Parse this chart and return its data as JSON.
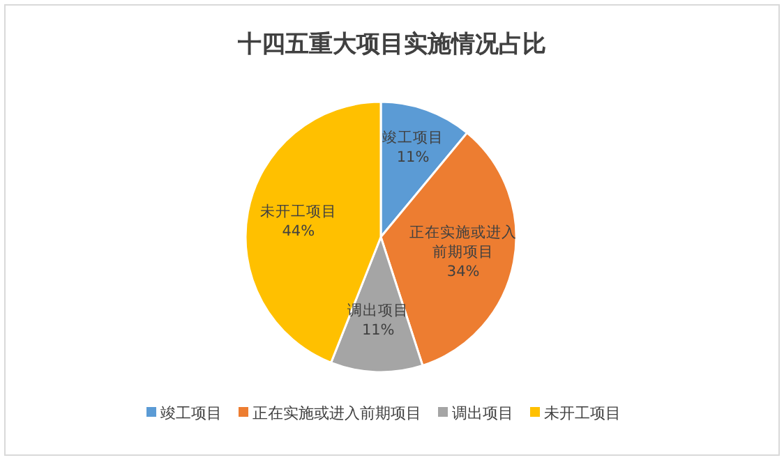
{
  "chart_data": {
    "type": "pie",
    "title": "十四五重大项目实施情况占比",
    "categories": [
      "竣工项目",
      "正在实施或进入前期项目",
      "调出项目",
      "未开工项目"
    ],
    "values": [
      11,
      34,
      11,
      44
    ],
    "colors": [
      "#5b9bd5",
      "#ed7d31",
      "#a5a5a5",
      "#ffc000"
    ],
    "value_labels": [
      "11%",
      "34%",
      "11%",
      "44%"
    ],
    "legend": "bottom"
  }
}
